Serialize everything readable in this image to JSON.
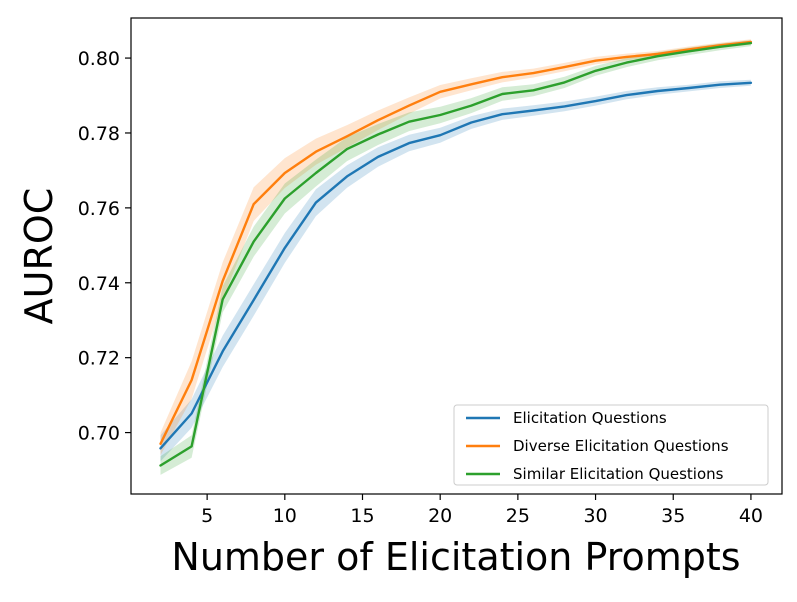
{
  "chart_data": {
    "type": "line",
    "title": "",
    "xlabel": "Number of Elicitation Prompts",
    "ylabel": "AUROC",
    "xlim": [
      0.1,
      42.0
    ],
    "ylim": [
      0.6836,
      0.8107
    ],
    "x_ticks": [
      5,
      10,
      15,
      20,
      25,
      30,
      35,
      40
    ],
    "y_ticks": [
      0.7,
      0.72,
      0.74,
      0.76,
      0.78,
      0.8
    ],
    "x_tick_labels": [
      "5",
      "10",
      "15",
      "20",
      "25",
      "30",
      "35",
      "40"
    ],
    "y_tick_labels": [
      "0.70",
      "0.72",
      "0.74",
      "0.76",
      "0.78",
      "0.80"
    ],
    "grid": false,
    "legend_position": "lower-right",
    "x": [
      2,
      4,
      6,
      8,
      10,
      12,
      14,
      16,
      18,
      20,
      22,
      24,
      26,
      28,
      30,
      32,
      34,
      36,
      38,
      40
    ],
    "series": [
      {
        "name": "Elicitation Questions",
        "color": "#1f77b4",
        "values": [
          0.6958,
          0.7051,
          0.7217,
          0.7354,
          0.7493,
          0.7614,
          0.7684,
          0.7736,
          0.7773,
          0.7794,
          0.7828,
          0.785,
          0.786,
          0.7871,
          0.7885,
          0.7901,
          0.7912,
          0.792,
          0.7929,
          0.7934
        ],
        "band": [
          0.0035,
          0.0038,
          0.0042,
          0.0042,
          0.004,
          0.0036,
          0.003,
          0.0026,
          0.0022,
          0.002,
          0.0017,
          0.0015,
          0.0014,
          0.0013,
          0.0012,
          0.0011,
          0.001,
          0.0009,
          0.0009,
          0.0008
        ]
      },
      {
        "name": "Diverse Elicitation Questions",
        "color": "#ff7f0e",
        "values": [
          0.697,
          0.714,
          0.7405,
          0.761,
          0.7693,
          0.775,
          0.7791,
          0.7834,
          0.7873,
          0.791,
          0.793,
          0.7949,
          0.796,
          0.7976,
          0.7993,
          0.8003,
          0.8011,
          0.8023,
          0.8034,
          0.8043
        ],
        "band": [
          0.003,
          0.005,
          0.005,
          0.0045,
          0.004,
          0.0035,
          0.003,
          0.0026,
          0.0022,
          0.0018,
          0.0016,
          0.0014,
          0.0012,
          0.0011,
          0.001,
          0.0009,
          0.0008,
          0.0008,
          0.0007,
          0.0007
        ]
      },
      {
        "name": "Similar Elicitation Questions",
        "color": "#2ca02c",
        "values": [
          0.6912,
          0.6963,
          0.7356,
          0.751,
          0.7625,
          0.7693,
          0.7757,
          0.7796,
          0.783,
          0.7848,
          0.7873,
          0.7904,
          0.7914,
          0.7935,
          0.7966,
          0.7988,
          0.8005,
          0.8018,
          0.803,
          0.804
        ],
        "band": [
          0.0025,
          0.003,
          0.0035,
          0.004,
          0.004,
          0.0036,
          0.0032,
          0.0028,
          0.0025,
          0.0022,
          0.002,
          0.0018,
          0.0016,
          0.0015,
          0.0013,
          0.0012,
          0.0011,
          0.001,
          0.0009,
          0.0008
        ]
      }
    ]
  }
}
